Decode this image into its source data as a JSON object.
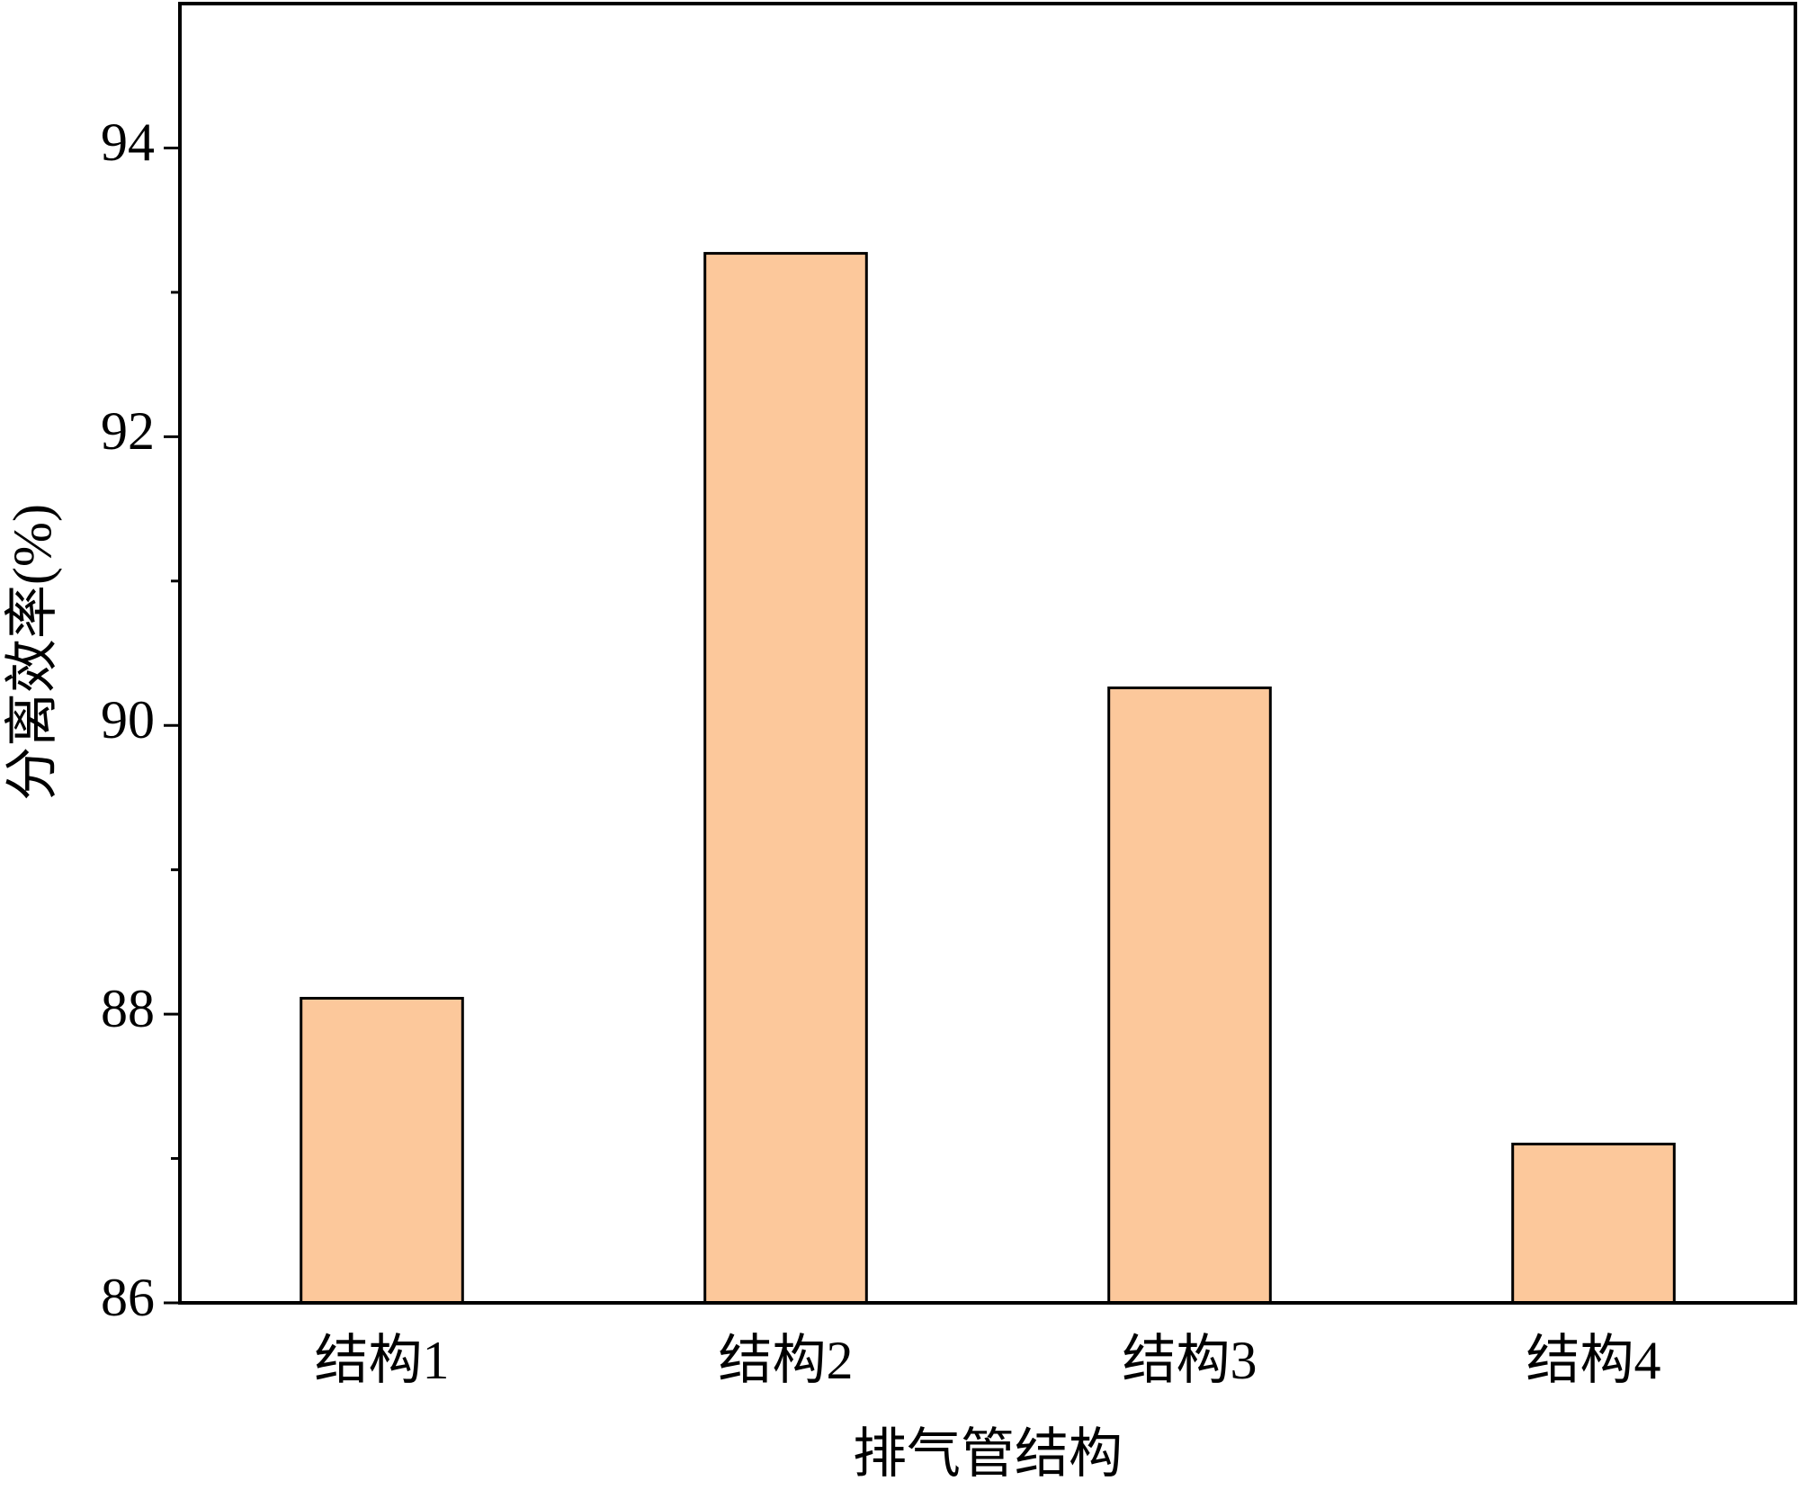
{
  "chart_data": {
    "type": "bar",
    "x_label": "排气管结构",
    "y_label": "分离效率(%)",
    "categories": [
      "结构1",
      "结构2",
      "结构3",
      "结构4"
    ],
    "values": [
      88.11,
      93.27,
      90.26,
      87.1
    ],
    "color": "#fcc89b",
    "ylim": [
      86,
      95
    ],
    "yticks": [
      86,
      88,
      90,
      92,
      94
    ],
    "minor_yticks": [
      87,
      89,
      91,
      93
    ]
  }
}
